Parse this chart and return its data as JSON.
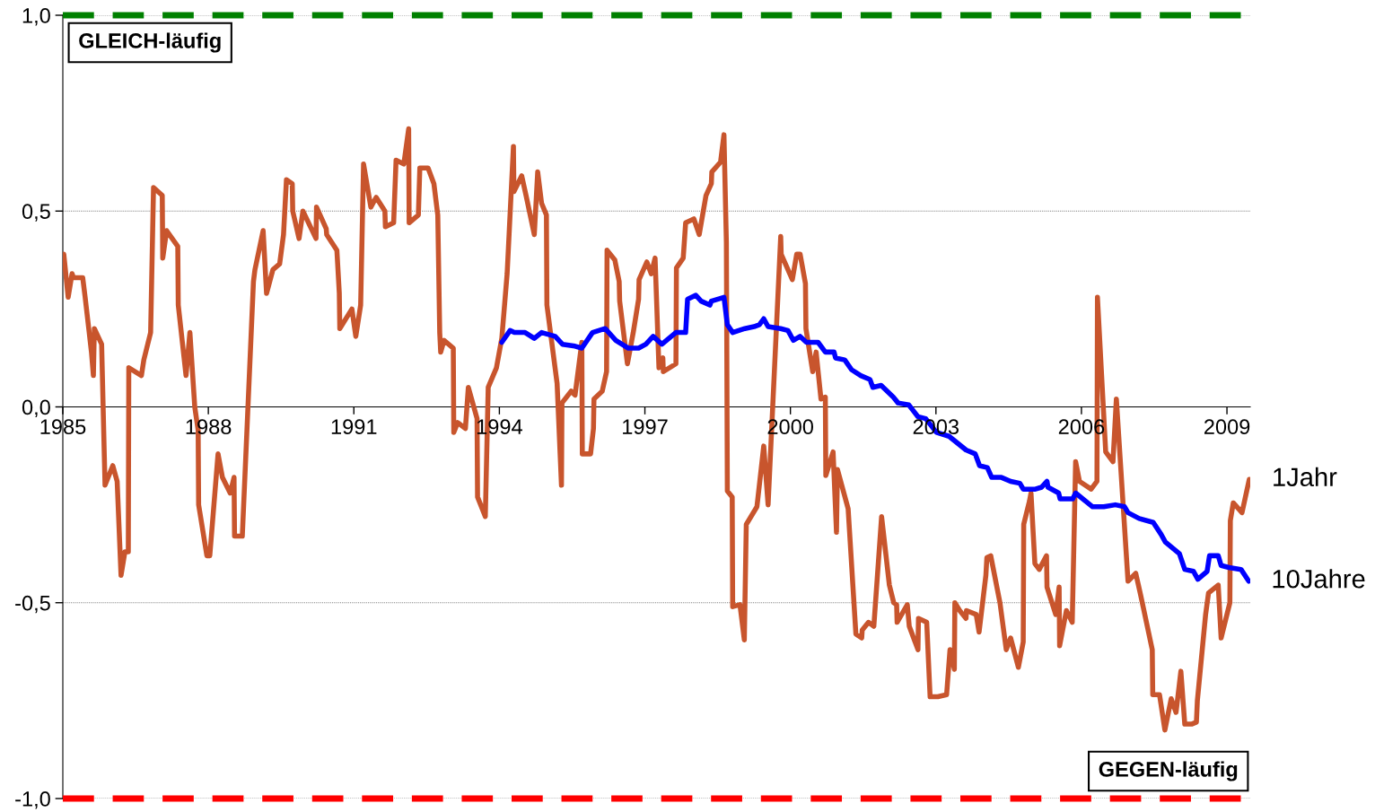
{
  "chart_data": {
    "type": "line",
    "xlim": [
      1985,
      2009.48
    ],
    "xticks": [
      1985,
      1988,
      1991,
      1994,
      1997,
      2000,
      2003,
      2006,
      2009
    ],
    "ylim": [
      -1,
      1
    ],
    "yticks": [
      {
        "value": -1,
        "label": "-1,0"
      },
      {
        "value": -0.5,
        "label": "-0,5"
      },
      {
        "value": 0,
        "label": "0,0"
      },
      {
        "value": 0.5,
        "label": "0,5"
      },
      {
        "value": 1,
        "label": "1,0"
      }
    ],
    "grid": "y",
    "legend": false,
    "marker": "none",
    "line_style": "solid",
    "ref_lines": [
      {
        "axis": "y",
        "value": 1,
        "label": "GLEICH-läufig",
        "color": "#008000",
        "line_style": "dashed"
      },
      {
        "axis": "y",
        "value": -1,
        "label": "GEGEN-läufig",
        "color": "#ff0000",
        "line_style": "dashed"
      }
    ],
    "series": [
      {
        "name": "1Jahr",
        "color": "#c8552d",
        "x": [
          1985.02,
          1985.11,
          1985.19,
          1985.22,
          1985.41,
          1985.46,
          1985.59,
          1985.63,
          1985.65,
          1985.8,
          1985.87,
          1986.03,
          1986.12,
          1986.2,
          1986.28,
          1986.35,
          1986.36,
          1986.62,
          1986.67,
          1986.81,
          1986.87,
          1987.05,
          1987.06,
          1987.14,
          1987.37,
          1987.38,
          1987.54,
          1987.62,
          1987.72,
          1987.79,
          1987.8,
          1987.97,
          1988.03,
          1988.2,
          1988.29,
          1988.45,
          1988.53,
          1988.54,
          1988.7,
          1988.93,
          1988.96,
          1989.13,
          1989.2,
          1989.33,
          1989.47,
          1989.55,
          1989.61,
          1989.73,
          1989.74,
          1989.87,
          1989.95,
          1990.22,
          1990.23,
          1990.43,
          1990.44,
          1990.65,
          1990.7,
          1990.71,
          1990.96,
          1991.04,
          1991.14,
          1991.2,
          1991.35,
          1991.46,
          1991.64,
          1991.65,
          1991.82,
          1991.87,
          1992.03,
          1992.13,
          1992.14,
          1992.33,
          1992.36,
          1992.53,
          1992.65,
          1992.73,
          1992.77,
          1992.79,
          1992.86,
          1993.05,
          1993.06,
          1993.14,
          1993.3,
          1993.36,
          1993.54,
          1993.55,
          1993.71,
          1993.77,
          1993.94,
          1994.05,
          1994.16,
          1994.29,
          1994.3,
          1994.46,
          1994.55,
          1994.72,
          1994.79,
          1994.87,
          1994.97,
          1994.98,
          1995.19,
          1995.28,
          1995.29,
          1995.48,
          1995.56,
          1995.7,
          1995.71,
          1995.88,
          1995.94,
          1995.95,
          1996.12,
          1996.21,
          1996.22,
          1996.38,
          1996.47,
          1996.48,
          1996.64,
          1996.76,
          1996.87,
          1996.88,
          1997.04,
          1997.13,
          1997.21,
          1997.29,
          1997.37,
          1997.38,
          1997.64,
          1997.65,
          1997.79,
          1997.84,
          1998.01,
          1998.12,
          1998.26,
          1998.37,
          1998.38,
          1998.56,
          1998.63,
          1998.68,
          1998.7,
          1998.8,
          1998.81,
          1998.96,
          1999.05,
          1999.09,
          1999.31,
          1999.45,
          1999.54,
          1999.8,
          1999.81,
          2000.04,
          2000.13,
          2000.2,
          2000.31,
          2000.32,
          2000.46,
          2000.53,
          2000.63,
          2000.72,
          2000.73,
          2000.88,
          2000.95,
          2000.97,
          2001.19,
          2001.35,
          2001.47,
          2001.48,
          2001.61,
          2001.72,
          2001.88,
          2002.04,
          2002.13,
          2002.19,
          2002.2,
          2002.41,
          2002.45,
          2002.63,
          2002.64,
          2002.81,
          2002.88,
          2003.04,
          2003.22,
          2003.29,
          2003.38,
          2003.39,
          2003.49,
          2003.62,
          2003.63,
          2003.83,
          2003.89,
          2004.03,
          2004.05,
          2004.13,
          2004.32,
          2004.45,
          2004.54,
          2004.7,
          2004.8,
          2004.81,
          2004.93,
          2004.96,
          2005.04,
          2005.13,
          2005.28,
          2005.29,
          2005.47,
          2005.54,
          2005.55,
          2005.69,
          2005.81,
          2005.88,
          2005.96,
          2006.2,
          2006.32,
          2006.33,
          2006.5,
          2006.65,
          2006.72,
          2006.96,
          2007.12,
          2007.22,
          2007.46,
          2007.47,
          2007.61,
          2007.72,
          2007.85,
          2007.95,
          2008.05,
          2008.13,
          2008.27,
          2008.37,
          2008.39,
          2008.56,
          2008.62,
          2008.82,
          2008.88,
          2009.06,
          2009.07,
          2009.13,
          2009.31,
          2009.46
        ],
        "values": [
          0.39,
          0.28,
          0.34,
          0.33,
          0.33,
          0.28,
          0.14,
          0.08,
          0.2,
          0.16,
          -0.2,
          -0.15,
          -0.19,
          -0.43,
          -0.37,
          -0.37,
          0.1,
          0.08,
          0.12,
          0.19,
          0.56,
          0.54,
          0.38,
          0.45,
          0.41,
          0.26,
          0.08,
          0.19,
          0.0,
          -0.06,
          -0.25,
          -0.38,
          -0.38,
          -0.12,
          -0.18,
          -0.22,
          -0.18,
          -0.33,
          -0.33,
          0.32,
          0.35,
          0.45,
          0.29,
          0.35,
          0.365,
          0.44,
          0.58,
          0.57,
          0.5,
          0.43,
          0.5,
          0.43,
          0.51,
          0.455,
          0.44,
          0.4,
          0.29,
          0.2,
          0.25,
          0.18,
          0.26,
          0.62,
          0.51,
          0.535,
          0.5,
          0.46,
          0.47,
          0.63,
          0.62,
          0.71,
          0.47,
          0.49,
          0.61,
          0.61,
          0.57,
          0.49,
          0.19,
          0.14,
          0.17,
          0.15,
          -0.065,
          -0.04,
          -0.055,
          0.05,
          -0.03,
          -0.23,
          -0.28,
          0.05,
          0.1,
          0.175,
          0.34,
          0.665,
          0.55,
          0.59,
          0.54,
          0.44,
          0.6,
          0.52,
          0.49,
          0.26,
          0.06,
          -0.2,
          0.01,
          0.04,
          0.03,
          0.165,
          -0.12,
          -0.12,
          -0.055,
          0.02,
          0.04,
          0.09,
          0.4,
          0.375,
          0.32,
          0.27,
          0.11,
          0.19,
          0.275,
          0.325,
          0.37,
          0.34,
          0.38,
          0.1,
          0.125,
          0.09,
          0.11,
          0.355,
          0.38,
          0.47,
          0.48,
          0.44,
          0.54,
          0.57,
          0.6,
          0.625,
          0.695,
          0.42,
          -0.215,
          -0.23,
          -0.51,
          -0.505,
          -0.595,
          -0.3,
          -0.255,
          -0.1,
          -0.25,
          0.435,
          0.39,
          0.325,
          0.39,
          0.39,
          0.315,
          0.2,
          0.09,
          0.14,
          0.02,
          0.025,
          -0.175,
          -0.115,
          -0.32,
          -0.16,
          -0.26,
          -0.58,
          -0.59,
          -0.57,
          -0.55,
          -0.56,
          -0.28,
          -0.455,
          -0.5,
          -0.505,
          -0.55,
          -0.505,
          -0.56,
          -0.62,
          -0.54,
          -0.55,
          -0.74,
          -0.74,
          -0.735,
          -0.62,
          -0.67,
          -0.5,
          -0.52,
          -0.54,
          -0.52,
          -0.53,
          -0.575,
          -0.43,
          -0.385,
          -0.38,
          -0.5,
          -0.62,
          -0.59,
          -0.665,
          -0.6,
          -0.3,
          -0.24,
          -0.22,
          -0.4,
          -0.415,
          -0.38,
          -0.46,
          -0.53,
          -0.46,
          -0.61,
          -0.52,
          -0.55,
          -0.14,
          -0.19,
          -0.21,
          -0.19,
          0.28,
          -0.115,
          -0.14,
          0.02,
          -0.445,
          -0.425,
          -0.48,
          -0.62,
          -0.735,
          -0.735,
          -0.825,
          -0.745,
          -0.78,
          -0.675,
          -0.81,
          -0.81,
          -0.805,
          -0.75,
          -0.53,
          -0.475,
          -0.455,
          -0.59,
          -0.5,
          -0.29,
          -0.245,
          -0.27,
          -0.185
        ]
      },
      {
        "name": "10Jahre",
        "color": "#0000ff",
        "x": [
          1994.05,
          1994.22,
          1994.31,
          1994.53,
          1994.72,
          1994.87,
          1995.15,
          1995.3,
          1995.56,
          1995.7,
          1995.92,
          1996.18,
          1996.4,
          1996.66,
          1996.87,
          1997.02,
          1997.17,
          1997.35,
          1997.64,
          1997.84,
          1997.88,
          1998.05,
          1998.16,
          1998.34,
          1998.37,
          1998.63,
          1998.7,
          1998.81,
          1999.06,
          1999.25,
          1999.36,
          1999.45,
          1999.54,
          1999.8,
          1999.95,
          2000.06,
          2000.2,
          2000.33,
          2000.57,
          2000.72,
          2000.9,
          2000.93,
          2001.12,
          2001.26,
          2001.45,
          2001.64,
          2001.7,
          2001.87,
          2002.12,
          2002.22,
          2002.44,
          2002.63,
          2002.79,
          2003.01,
          2003.27,
          2003.62,
          2003.81,
          2003.9,
          2004.06,
          2004.15,
          2004.35,
          2004.54,
          2004.73,
          2004.8,
          2005.05,
          2005.18,
          2005.29,
          2005.31,
          2005.53,
          2005.56,
          2005.82,
          2005.88,
          2006.23,
          2006.46,
          2006.7,
          2006.89,
          2006.96,
          2007.19,
          2007.48,
          2007.64,
          2007.73,
          2008.02,
          2008.13,
          2008.31,
          2008.4,
          2008.59,
          2008.64,
          2008.82,
          2008.88,
          2009.04,
          2009.29,
          2009.45
        ],
        "values": [
          0.165,
          0.195,
          0.19,
          0.19,
          0.175,
          0.19,
          0.18,
          0.16,
          0.155,
          0.15,
          0.19,
          0.2,
          0.17,
          0.15,
          0.15,
          0.16,
          0.18,
          0.16,
          0.19,
          0.19,
          0.275,
          0.285,
          0.27,
          0.26,
          0.27,
          0.28,
          0.21,
          0.19,
          0.2,
          0.205,
          0.21,
          0.225,
          0.205,
          0.2,
          0.195,
          0.17,
          0.18,
          0.165,
          0.165,
          0.14,
          0.14,
          0.125,
          0.12,
          0.095,
          0.08,
          0.07,
          0.05,
          0.055,
          0.025,
          0.01,
          0.005,
          -0.025,
          -0.03,
          -0.065,
          -0.075,
          -0.11,
          -0.12,
          -0.15,
          -0.155,
          -0.18,
          -0.18,
          -0.19,
          -0.195,
          -0.21,
          -0.21,
          -0.205,
          -0.19,
          -0.205,
          -0.22,
          -0.235,
          -0.235,
          -0.22,
          -0.255,
          -0.255,
          -0.25,
          -0.255,
          -0.27,
          -0.285,
          -0.295,
          -0.325,
          -0.345,
          -0.375,
          -0.415,
          -0.42,
          -0.44,
          -0.42,
          -0.38,
          -0.38,
          -0.405,
          -0.41,
          -0.415,
          -0.445
        ]
      }
    ]
  }
}
